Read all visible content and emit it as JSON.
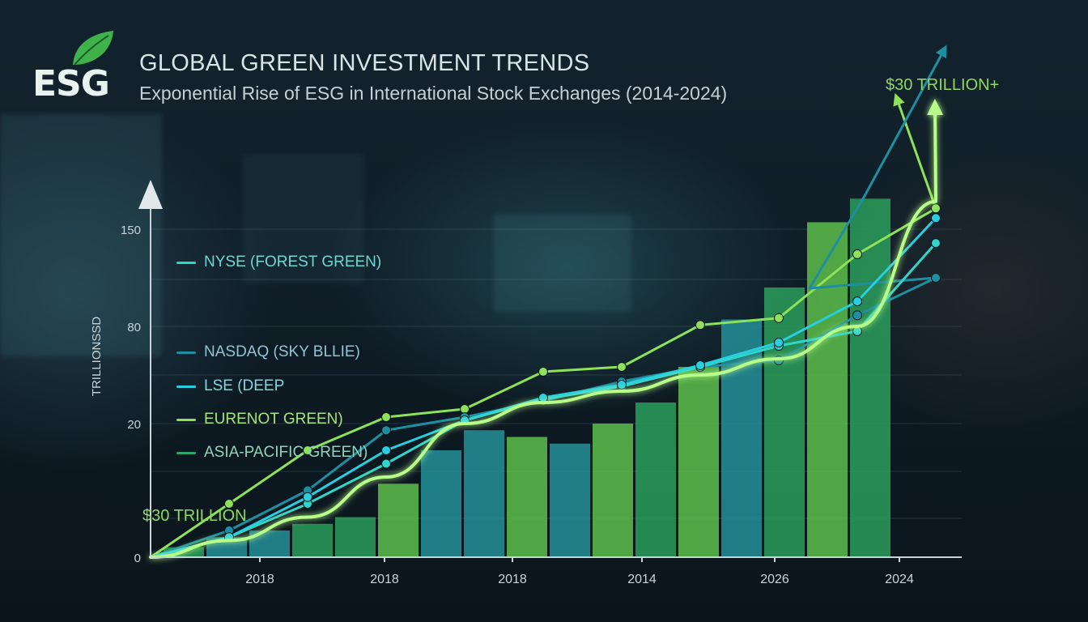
{
  "header": {
    "logo_text": "ESG",
    "title": "GLOBAL GREEN INVESTMENT TRENDS",
    "subtitle": "Exponential Rise of ESG in International Stock Exchanges (2014-2024)"
  },
  "colors": {
    "nyse": "#2fd6c8",
    "nasdaq": "#1e8fa0",
    "lse": "#27cfe0",
    "euronext": "#8ee25a",
    "asia_pacific": "#2aa66a",
    "bar_green": "#5aba4a",
    "bar_teal": "#238c95",
    "bar_dark": "#2a9a5a",
    "glow_line": "#b8ff8a",
    "annotation": "#8ed860"
  },
  "legend": [
    {
      "label": "NYSE (FOREST GREEN)",
      "color": "#2fd6c8",
      "text_color": "#6fd6d0"
    },
    {
      "label": "NASDAQ (SKY BLLIE)",
      "color": "#1e8fa0",
      "text_color": "#8fc6d6"
    },
    {
      "label": "LSE (DEEP",
      "color": "#27cfe0",
      "text_color": "#7fd8e0"
    },
    {
      "label": "EURENOT GREEN)",
      "color": "#8ee25a",
      "text_color": "#a8e27a"
    },
    {
      "label": "ASIA-PACIFIC GREEN)",
      "color": "#2aa66a",
      "text_color": "#8fd6b8"
    }
  ],
  "chart_data": {
    "type": "bar",
    "title": "GLOBAL GREEN INVESTMENT TRENDS",
    "subtitle": "Exponential Rise of ESG in International Stock Exchanges (2014-2024)",
    "ylabel": "TRILLIONSSD",
    "xlabel": "",
    "y_ticks": [
      "0",
      "20",
      "80",
      "150"
    ],
    "x_tick_labels": [
      "2018",
      "2018",
      "2018",
      "2014",
      "2026",
      "2024"
    ],
    "grid": true,
    "annotations": [
      "$30 TRILLION",
      "$30 TRILLION+"
    ],
    "bars": [
      {
        "value": 1.5,
        "color": "#2a9a5a"
      },
      {
        "value": 3,
        "color": "#238c95"
      },
      {
        "value": 4,
        "color": "#238c95"
      },
      {
        "value": 5,
        "color": "#2a9a5a"
      },
      {
        "value": 6,
        "color": "#2a9a5a"
      },
      {
        "value": 11,
        "color": "#5aba4a"
      },
      {
        "value": 16,
        "color": "#238c95"
      },
      {
        "value": 19,
        "color": "#238c95"
      },
      {
        "value": 18,
        "color": "#5aba4a"
      },
      {
        "value": 17,
        "color": "#238c95"
      },
      {
        "value": 20,
        "color": "#5aba4a"
      },
      {
        "value": 33,
        "color": "#2a9a5a"
      },
      {
        "value": 55,
        "color": "#5aba4a"
      },
      {
        "value": 85,
        "color": "#238c95"
      },
      {
        "value": 108,
        "color": "#2a9a5a"
      },
      {
        "value": 155,
        "color": "#5aba4a"
      },
      {
        "value": 172,
        "color": "#2a9a5a"
      }
    ],
    "series": [
      {
        "key": "euronext",
        "style": "markers",
        "points": [
          [
            0,
            0
          ],
          [
            1,
            8
          ],
          [
            2,
            16
          ],
          [
            3,
            24
          ],
          [
            4,
            29
          ],
          [
            5,
            52
          ],
          [
            6,
            55
          ],
          [
            7,
            81
          ],
          [
            8,
            86
          ],
          [
            9,
            132
          ],
          [
            10,
            165
          ]
        ]
      },
      {
        "key": "nasdaq",
        "style": "markers",
        "points": [
          [
            0,
            0
          ],
          [
            1,
            4
          ],
          [
            2,
            10
          ],
          [
            3,
            19
          ],
          [
            4,
            24
          ],
          [
            5,
            34
          ],
          [
            6,
            46
          ],
          [
            7,
            55
          ],
          [
            8,
            59
          ],
          [
            9,
            88
          ],
          [
            10,
            115
          ]
        ]
      },
      {
        "key": "nyse",
        "style": "markers",
        "points": [
          [
            0,
            0
          ],
          [
            1,
            3
          ],
          [
            2,
            8
          ],
          [
            3,
            14
          ],
          [
            4,
            22
          ],
          [
            5,
            35
          ],
          [
            6,
            43
          ],
          [
            7,
            55
          ],
          [
            8,
            68
          ],
          [
            9,
            77
          ],
          [
            10,
            140
          ]
        ]
      },
      {
        "key": "lse",
        "style": "markers",
        "points": [
          [
            0,
            0
          ],
          [
            1,
            3
          ],
          [
            2,
            9
          ],
          [
            3,
            16
          ],
          [
            4,
            22
          ],
          [
            5,
            36
          ],
          [
            6,
            44
          ],
          [
            7,
            56
          ],
          [
            8,
            70
          ],
          [
            9,
            98
          ],
          [
            10,
            158
          ]
        ]
      },
      {
        "key": "glow_line",
        "style": "smooth",
        "points": [
          [
            0,
            0
          ],
          [
            1,
            2.5
          ],
          [
            2,
            6
          ],
          [
            3,
            12
          ],
          [
            4,
            20
          ],
          [
            5,
            33
          ],
          [
            6,
            40
          ],
          [
            7,
            50
          ],
          [
            8,
            60
          ],
          [
            9,
            80
          ],
          [
            10,
            170
          ]
        ]
      }
    ]
  }
}
